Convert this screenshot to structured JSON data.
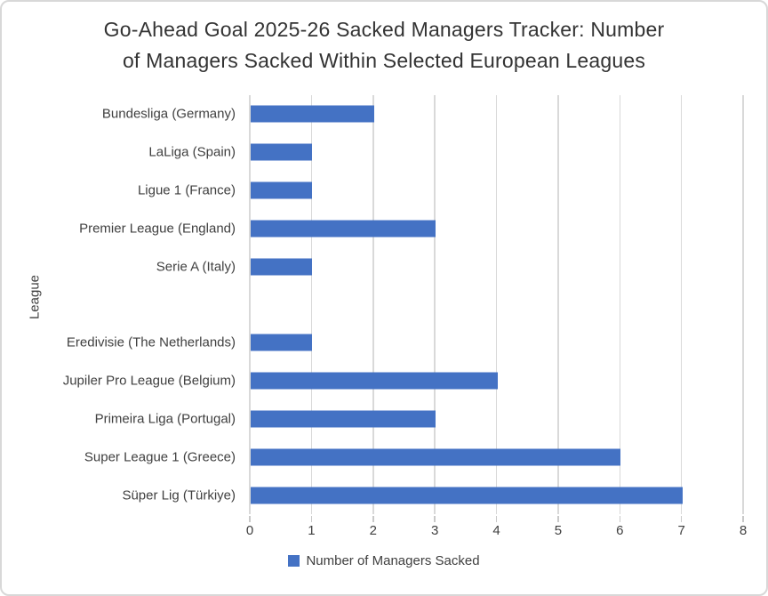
{
  "chart_data": {
    "type": "bar",
    "orientation": "horizontal",
    "title": "Go-Ahead Goal 2025-26 Sacked Managers Tracker: Number of Managers Sacked Within Selected European Leagues",
    "title_lines": [
      "Go-Ahead Goal 2025-26 Sacked Managers Tracker: Number",
      "of Managers Sacked Within Selected European Leagues"
    ],
    "categories": [
      "Bundesliga (Germany)",
      "LaLiga (Spain)",
      "Ligue 1 (France)",
      "Premier League (England)",
      "Serie A (Italy)",
      "",
      "Eredivisie (The Netherlands)",
      "Jupiler Pro League (Belgium)",
      "Primeira Liga (Portugal)",
      "Super League 1 (Greece)",
      "Süper Lig (Türkiye)"
    ],
    "values": [
      2,
      1,
      1,
      3,
      1,
      0,
      1,
      4,
      3,
      6,
      7
    ],
    "xlabel": "",
    "ylabel": "League",
    "xlim": [
      0,
      8
    ],
    "x_ticks": [
      "0",
      "1",
      "2",
      "3",
      "4",
      "5",
      "6",
      "7",
      "8"
    ],
    "grid": true,
    "bar_color": "#4472C4",
    "gridline_color": "#D9D9D9",
    "tick_color": "#C9C9C9",
    "legend": {
      "position": "bottom",
      "entries": [
        {
          "label": "Number of Managers Sacked",
          "color": "#4472C4"
        }
      ]
    }
  }
}
